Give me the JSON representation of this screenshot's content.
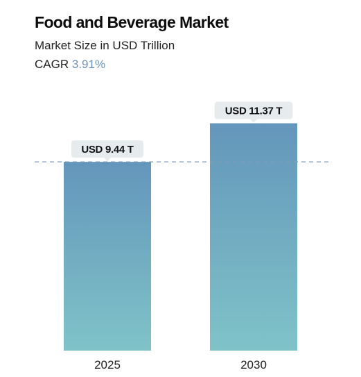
{
  "header": {
    "title": "Food and Beverage Market",
    "subtitle": "Market Size in USD Trillion",
    "cagr_label": "CAGR",
    "cagr_value": "3.91%"
  },
  "colors": {
    "bar_top": "#6496bb",
    "bar_bottom": "#7fc3c8",
    "reference_line": "#7c9cbb",
    "label_bg": "#e6ebee",
    "cagr_accent": "#6b93b5"
  },
  "chart_data": {
    "type": "bar",
    "title": "Food and Beverage Market",
    "subtitle": "Market Size in USD Trillion",
    "categories": [
      "2025",
      "2030"
    ],
    "values": [
      9.44,
      11.37
    ],
    "data_labels": [
      "USD 9.44 T",
      "USD 11.37 T"
    ],
    "unit": "USD Trillion",
    "reference_line": 9.44,
    "grid": false,
    "legend": "none"
  }
}
